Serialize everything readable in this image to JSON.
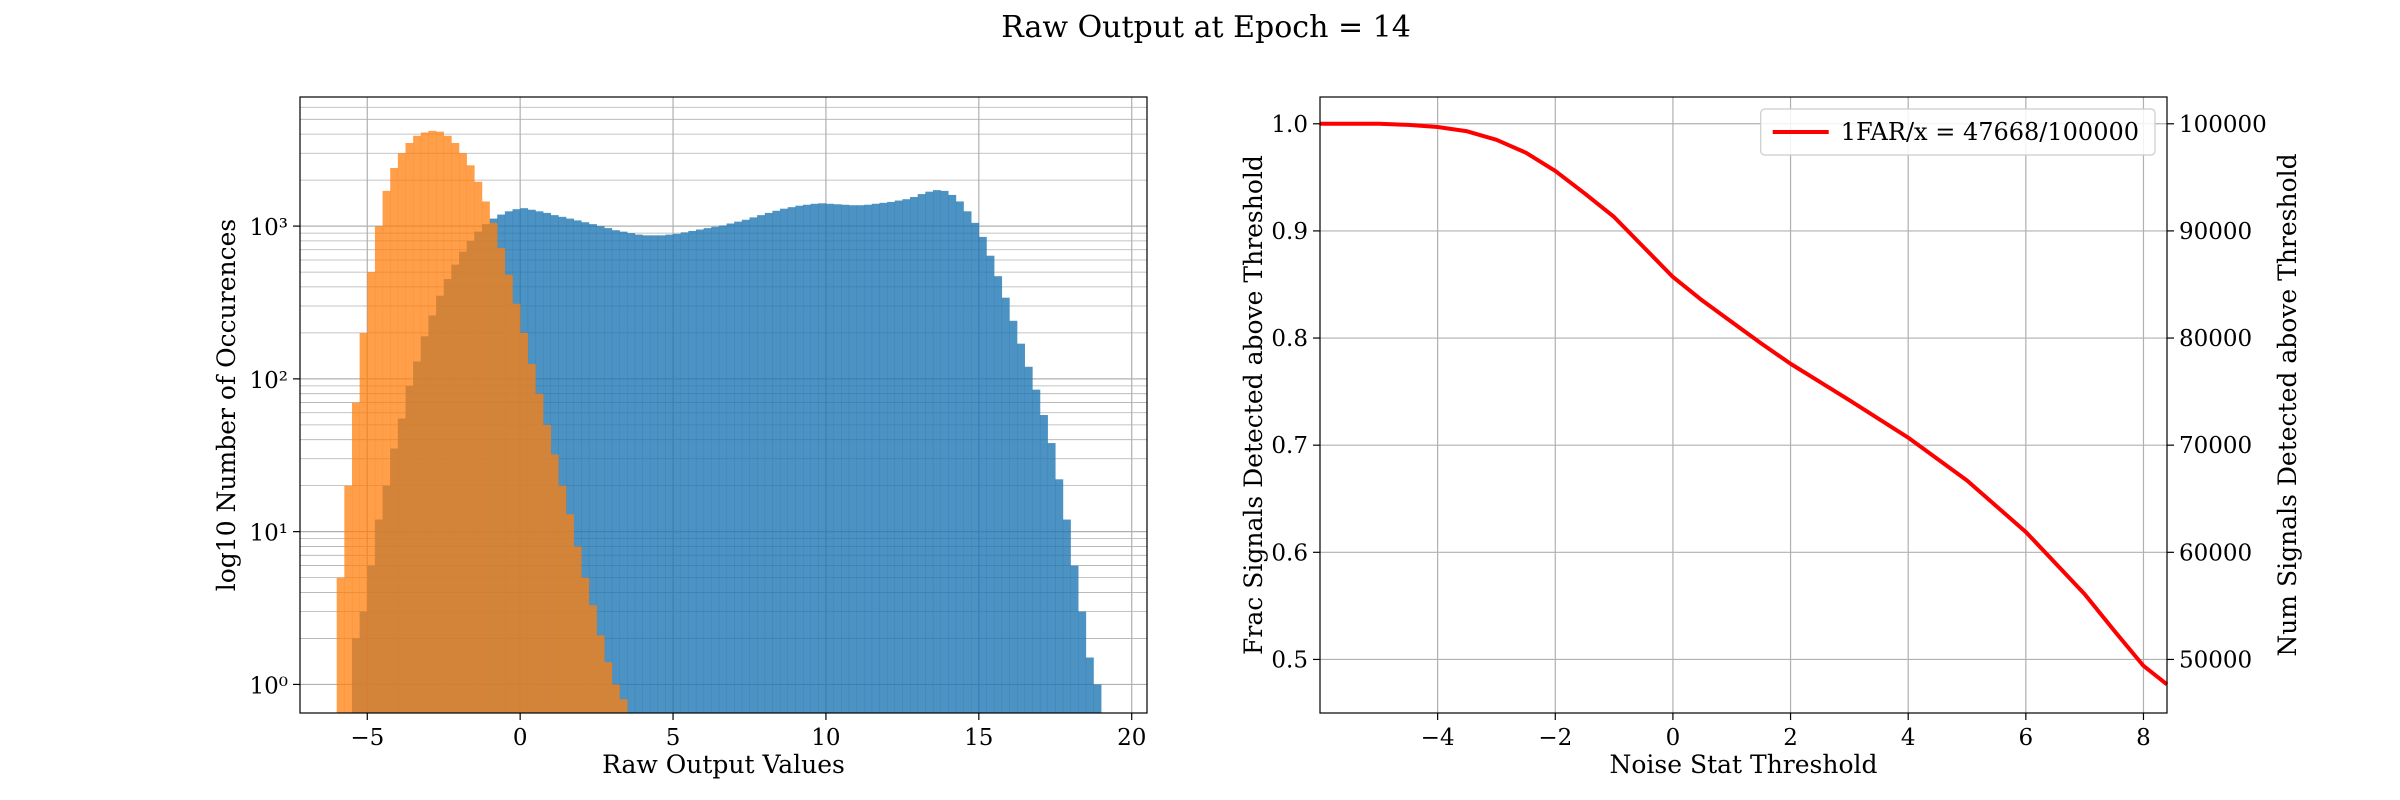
{
  "figure": {
    "title": "Raw Output at Epoch = 14"
  },
  "colors": {
    "signal": "#1f77b4",
    "noise": "#ff7f0e",
    "curve": "#ff0000",
    "grid": "#b0b0b0"
  },
  "chart_data": [
    {
      "type": "bar",
      "subtype": "histogram-overlay",
      "xlabel": "Raw Output Values",
      "ylabel": "log10 Number of Occurences",
      "yscale": "log",
      "xlim": [
        -7.2,
        20.5
      ],
      "ylim": [
        0.65,
        7000
      ],
      "xticks": [
        -5,
        0,
        5,
        10,
        15,
        20
      ],
      "xtick_labels": [
        "−5",
        "0",
        "5",
        "10",
        "15",
        "20"
      ],
      "yticks": [
        1,
        10,
        100,
        1000
      ],
      "ytick_labels": [
        "10⁰",
        "10¹",
        "10²",
        "10³"
      ],
      "grid": true,
      "bin_width": 0.25,
      "series": [
        {
          "key": "signal",
          "alpha": 0.8,
          "color": "#1f77b4",
          "points": [
            [
              -6.0,
              0
            ],
            [
              -5.5,
              2
            ],
            [
              -5.25,
              3
            ],
            [
              -5.0,
              6
            ],
            [
              -4.75,
              12
            ],
            [
              -4.5,
              20
            ],
            [
              -4.25,
              35
            ],
            [
              -4.0,
              55
            ],
            [
              -3.75,
              90
            ],
            [
              -3.5,
              130
            ],
            [
              -3.25,
              190
            ],
            [
              -3.0,
              260
            ],
            [
              -2.75,
              350
            ],
            [
              -2.5,
              450
            ],
            [
              -2.25,
              560
            ],
            [
              -2.0,
              680
            ],
            [
              -1.75,
              800
            ],
            [
              -1.5,
              920
            ],
            [
              -1.25,
              1030
            ],
            [
              -1.0,
              1120
            ],
            [
              -0.75,
              1190
            ],
            [
              -0.5,
              1250
            ],
            [
              -0.25,
              1290
            ],
            [
              0.0,
              1310
            ],
            [
              0.25,
              1280
            ],
            [
              0.5,
              1250
            ],
            [
              0.75,
              1220
            ],
            [
              1.0,
              1180
            ],
            [
              1.25,
              1150
            ],
            [
              1.5,
              1120
            ],
            [
              1.75,
              1090
            ],
            [
              2.0,
              1060
            ],
            [
              2.25,
              1030
            ],
            [
              2.5,
              1000
            ],
            [
              2.75,
              970
            ],
            [
              3.0,
              940
            ],
            [
              3.25,
              920
            ],
            [
              3.5,
              900
            ],
            [
              3.75,
              880
            ],
            [
              4.0,
              870
            ],
            [
              4.25,
              870
            ],
            [
              4.5,
              870
            ],
            [
              4.75,
              880
            ],
            [
              5.0,
              890
            ],
            [
              5.25,
              910
            ],
            [
              5.5,
              930
            ],
            [
              5.75,
              950
            ],
            [
              6.0,
              970
            ],
            [
              6.25,
              990
            ],
            [
              6.5,
              1010
            ],
            [
              6.75,
              1040
            ],
            [
              7.0,
              1070
            ],
            [
              7.25,
              1100
            ],
            [
              7.5,
              1140
            ],
            [
              7.75,
              1180
            ],
            [
              8.0,
              1220
            ],
            [
              8.25,
              1260
            ],
            [
              8.5,
              1300
            ],
            [
              8.75,
              1330
            ],
            [
              9.0,
              1360
            ],
            [
              9.25,
              1380
            ],
            [
              9.5,
              1400
            ],
            [
              9.75,
              1410
            ],
            [
              10.0,
              1400
            ],
            [
              10.25,
              1390
            ],
            [
              10.5,
              1380
            ],
            [
              10.75,
              1370
            ],
            [
              11.0,
              1370
            ],
            [
              11.25,
              1380
            ],
            [
              11.5,
              1400
            ],
            [
              11.75,
              1420
            ],
            [
              12.0,
              1440
            ],
            [
              12.25,
              1470
            ],
            [
              12.5,
              1500
            ],
            [
              12.75,
              1550
            ],
            [
              13.0,
              1620
            ],
            [
              13.25,
              1680
            ],
            [
              13.5,
              1720
            ],
            [
              13.75,
              1700
            ],
            [
              14.0,
              1600
            ],
            [
              14.25,
              1450
            ],
            [
              14.5,
              1250
            ],
            [
              14.75,
              1050
            ],
            [
              15.0,
              850
            ],
            [
              15.25,
              640
            ],
            [
              15.5,
              470
            ],
            [
              15.75,
              340
            ],
            [
              16.0,
              240
            ],
            [
              16.25,
              170
            ],
            [
              16.5,
              120
            ],
            [
              16.75,
              85
            ],
            [
              17.0,
              58
            ],
            [
              17.25,
              38
            ],
            [
              17.5,
              22
            ],
            [
              17.75,
              12
            ],
            [
              18.0,
              6
            ],
            [
              18.25,
              3
            ],
            [
              18.5,
              1.5
            ],
            [
              18.75,
              1
            ]
          ]
        },
        {
          "key": "noise",
          "alpha": 0.75,
          "color": "#ff7f0e",
          "points": [
            [
              -6.0,
              5
            ],
            [
              -5.75,
              20
            ],
            [
              -5.5,
              70
            ],
            [
              -5.25,
              200
            ],
            [
              -5.0,
              500
            ],
            [
              -4.75,
              1000
            ],
            [
              -4.5,
              1700
            ],
            [
              -4.25,
              2400
            ],
            [
              -4.0,
              3000
            ],
            [
              -3.75,
              3500
            ],
            [
              -3.5,
              3900
            ],
            [
              -3.25,
              4100
            ],
            [
              -3.0,
              4200
            ],
            [
              -2.75,
              4150
            ],
            [
              -2.5,
              3900
            ],
            [
              -2.25,
              3500
            ],
            [
              -2.0,
              3000
            ],
            [
              -1.75,
              2500
            ],
            [
              -1.5,
              1950
            ],
            [
              -1.25,
              1450
            ],
            [
              -1.0,
              1050
            ],
            [
              -0.75,
              720
            ],
            [
              -0.5,
              480
            ],
            [
              -0.25,
              310
            ],
            [
              0.0,
              200
            ],
            [
              0.25,
              125
            ],
            [
              0.5,
              80
            ],
            [
              0.75,
              50
            ],
            [
              1.0,
              32
            ],
            [
              1.25,
              20
            ],
            [
              1.5,
              13
            ],
            [
              1.75,
              8
            ],
            [
              2.0,
              5
            ],
            [
              2.25,
              3.3
            ],
            [
              2.5,
              2.1
            ],
            [
              2.75,
              1.4
            ],
            [
              3.0,
              1.0
            ],
            [
              3.25,
              0.8
            ]
          ]
        }
      ]
    },
    {
      "type": "line",
      "xlabel": "Noise Stat Threshold",
      "ylabel": "Frac Signals Detected above Threshold",
      "ylabel_right": "Num Signals Detected above Threshold",
      "xlim": [
        -6.0,
        8.4
      ],
      "ylim": [
        0.45,
        1.025
      ],
      "ylim_right": [
        45000,
        102500
      ],
      "xticks": [
        -4,
        -2,
        0,
        2,
        4,
        6,
        8
      ],
      "xtick_labels": [
        "−4",
        "−2",
        "0",
        "2",
        "4",
        "6",
        "8"
      ],
      "yticks": [
        0.5,
        0.6,
        0.7,
        0.8,
        0.9,
        1.0
      ],
      "ytick_labels": [
        "0.5",
        "0.6",
        "0.7",
        "0.8",
        "0.9",
        "1.0"
      ],
      "yticks_right": [
        50000,
        60000,
        70000,
        80000,
        90000,
        100000
      ],
      "ytick_labels_right": [
        "50000",
        "60000",
        "70000",
        "80000",
        "90000",
        "100000"
      ],
      "grid": true,
      "legend_position": "top-right",
      "series": [
        {
          "name": "1FAR/x = 47668/100000",
          "color": "#ff0000",
          "x": [
            -6.0,
            -5.0,
            -4.5,
            -4.0,
            -3.5,
            -3.0,
            -2.5,
            -2.0,
            -1.5,
            -1.0,
            -0.5,
            0.0,
            0.5,
            1.0,
            1.5,
            2.0,
            3.0,
            4.0,
            5.0,
            6.0,
            7.0,
            7.5,
            8.0,
            8.4
          ],
          "y": [
            1.0,
            1.0,
            0.999,
            0.997,
            0.993,
            0.985,
            0.973,
            0.956,
            0.935,
            0.913,
            0.885,
            0.857,
            0.835,
            0.815,
            0.795,
            0.776,
            0.742,
            0.707,
            0.667,
            0.619,
            0.561,
            0.527,
            0.494,
            0.4767
          ]
        }
      ]
    }
  ]
}
